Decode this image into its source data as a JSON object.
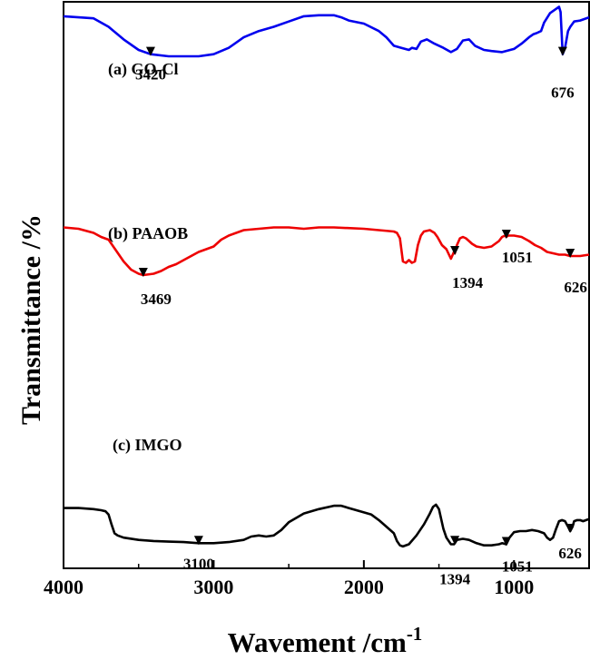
{
  "chart_data": {
    "type": "line",
    "title": "",
    "xlabel": "Wavement /cm",
    "xlabel_superscript": "-1",
    "ylabel": "Transmittance /%",
    "xlim": [
      4000,
      500
    ],
    "x_reversed": true,
    "xticks": [
      4000,
      3000,
      2000,
      1000
    ],
    "xtick_labels": [
      "4000",
      "3000",
      "2000",
      "1000"
    ],
    "yticks_shown": false,
    "grid": false,
    "legend": "none",
    "series": [
      {
        "name": "(a) GO-Cl",
        "color": "#0000ee",
        "points": [
          [
            4000,
            0.94
          ],
          [
            3800,
            0.93
          ],
          [
            3700,
            0.89
          ],
          [
            3600,
            0.83
          ],
          [
            3500,
            0.78
          ],
          [
            3420,
            0.76
          ],
          [
            3300,
            0.75
          ],
          [
            3100,
            0.75
          ],
          [
            3000,
            0.76
          ],
          [
            2900,
            0.79
          ],
          [
            2800,
            0.84
          ],
          [
            2700,
            0.87
          ],
          [
            2600,
            0.89
          ],
          [
            2500,
            0.915
          ],
          [
            2400,
            0.94
          ],
          [
            2300,
            0.945
          ],
          [
            2200,
            0.945
          ],
          [
            2150,
            0.935
          ],
          [
            2100,
            0.92
          ],
          [
            2000,
            0.905
          ],
          [
            1900,
            0.87
          ],
          [
            1850,
            0.84
          ],
          [
            1800,
            0.8
          ],
          [
            1750,
            0.79
          ],
          [
            1700,
            0.78
          ],
          [
            1680,
            0.79
          ],
          [
            1650,
            0.785
          ],
          [
            1620,
            0.82
          ],
          [
            1580,
            0.83
          ],
          [
            1530,
            0.81
          ],
          [
            1470,
            0.79
          ],
          [
            1420,
            0.77
          ],
          [
            1380,
            0.785
          ],
          [
            1340,
            0.825
          ],
          [
            1300,
            0.83
          ],
          [
            1260,
            0.8
          ],
          [
            1200,
            0.78
          ],
          [
            1150,
            0.775
          ],
          [
            1080,
            0.77
          ],
          [
            1000,
            0.785
          ],
          [
            950,
            0.81
          ],
          [
            900,
            0.84
          ],
          [
            870,
            0.855
          ],
          [
            850,
            0.86
          ],
          [
            820,
            0.87
          ],
          [
            800,
            0.91
          ],
          [
            760,
            0.955
          ],
          [
            720,
            0.975
          ],
          [
            700,
            0.985
          ],
          [
            690,
            0.96
          ],
          [
            676,
            0.76
          ],
          [
            660,
            0.79
          ],
          [
            640,
            0.87
          ],
          [
            625,
            0.89
          ],
          [
            600,
            0.915
          ],
          [
            560,
            0.92
          ],
          [
            500,
            0.935
          ]
        ]
      },
      {
        "name": "(b) PAAOB",
        "color": "#ee0000",
        "points": [
          [
            4000,
            0.685
          ],
          [
            3900,
            0.68
          ],
          [
            3800,
            0.665
          ],
          [
            3750,
            0.65
          ],
          [
            3700,
            0.64
          ],
          [
            3650,
            0.6
          ],
          [
            3600,
            0.56
          ],
          [
            3550,
            0.53
          ],
          [
            3500,
            0.515
          ],
          [
            3469,
            0.51
          ],
          [
            3400,
            0.515
          ],
          [
            3350,
            0.525
          ],
          [
            3300,
            0.54
          ],
          [
            3250,
            0.55
          ],
          [
            3200,
            0.565
          ],
          [
            3150,
            0.58
          ],
          [
            3100,
            0.595
          ],
          [
            3050,
            0.605
          ],
          [
            3000,
            0.615
          ],
          [
            2980,
            0.625
          ],
          [
            2950,
            0.64
          ],
          [
            2900,
            0.655
          ],
          [
            2850,
            0.665
          ],
          [
            2800,
            0.675
          ],
          [
            2700,
            0.68
          ],
          [
            2600,
            0.685
          ],
          [
            2500,
            0.685
          ],
          [
            2400,
            0.68
          ],
          [
            2300,
            0.685
          ],
          [
            2200,
            0.685
          ],
          [
            2000,
            0.68
          ],
          [
            1900,
            0.675
          ],
          [
            1800,
            0.67
          ],
          [
            1780,
            0.665
          ],
          [
            1760,
            0.645
          ],
          [
            1740,
            0.56
          ],
          [
            1720,
            0.555
          ],
          [
            1700,
            0.565
          ],
          [
            1680,
            0.555
          ],
          [
            1660,
            0.56
          ],
          [
            1640,
            0.62
          ],
          [
            1620,
            0.655
          ],
          [
            1600,
            0.67
          ],
          [
            1560,
            0.675
          ],
          [
            1530,
            0.665
          ],
          [
            1510,
            0.65
          ],
          [
            1500,
            0.64
          ],
          [
            1480,
            0.62
          ],
          [
            1450,
            0.605
          ],
          [
            1420,
            0.57
          ],
          [
            1400,
            0.595
          ],
          [
            1394,
            0.59
          ],
          [
            1380,
            0.62
          ],
          [
            1360,
            0.645
          ],
          [
            1340,
            0.65
          ],
          [
            1320,
            0.645
          ],
          [
            1300,
            0.635
          ],
          [
            1280,
            0.625
          ],
          [
            1250,
            0.615
          ],
          [
            1200,
            0.61
          ],
          [
            1150,
            0.615
          ],
          [
            1100,
            0.635
          ],
          [
            1080,
            0.65
          ],
          [
            1060,
            0.655
          ],
          [
            1051,
            0.65
          ],
          [
            1040,
            0.655
          ],
          [
            1000,
            0.655
          ],
          [
            950,
            0.65
          ],
          [
            900,
            0.635
          ],
          [
            860,
            0.62
          ],
          [
            820,
            0.61
          ],
          [
            780,
            0.595
          ],
          [
            740,
            0.59
          ],
          [
            700,
            0.585
          ],
          [
            660,
            0.585
          ],
          [
            626,
            0.58
          ],
          [
            600,
            0.58
          ],
          [
            560,
            0.58
          ],
          [
            500,
            0.585
          ]
        ]
      },
      {
        "name": "(c) IMGO",
        "color": "#000000",
        "points": [
          [
            4000,
            0.415
          ],
          [
            3900,
            0.415
          ],
          [
            3800,
            0.41
          ],
          [
            3750,
            0.405
          ],
          [
            3720,
            0.4
          ],
          [
            3700,
            0.385
          ],
          [
            3680,
            0.34
          ],
          [
            3660,
            0.3
          ],
          [
            3640,
            0.29
          ],
          [
            3600,
            0.28
          ],
          [
            3500,
            0.27
          ],
          [
            3400,
            0.265
          ],
          [
            3300,
            0.262
          ],
          [
            3200,
            0.26
          ],
          [
            3100,
            0.255
          ],
          [
            3000,
            0.255
          ],
          [
            2900,
            0.26
          ],
          [
            2800,
            0.27
          ],
          [
            2750,
            0.285
          ],
          [
            2700,
            0.29
          ],
          [
            2650,
            0.285
          ],
          [
            2600,
            0.29
          ],
          [
            2550,
            0.315
          ],
          [
            2500,
            0.35
          ],
          [
            2400,
            0.39
          ],
          [
            2300,
            0.41
          ],
          [
            2200,
            0.425
          ],
          [
            2150,
            0.425
          ],
          [
            2100,
            0.415
          ],
          [
            2000,
            0.395
          ],
          [
            1950,
            0.385
          ],
          [
            1900,
            0.36
          ],
          [
            1850,
            0.33
          ],
          [
            1800,
            0.3
          ],
          [
            1780,
            0.265
          ],
          [
            1760,
            0.245
          ],
          [
            1740,
            0.24
          ],
          [
            1700,
            0.25
          ],
          [
            1650,
            0.29
          ],
          [
            1600,
            0.34
          ],
          [
            1560,
            0.39
          ],
          [
            1540,
            0.42
          ],
          [
            1520,
            0.43
          ],
          [
            1500,
            0.41
          ],
          [
            1470,
            0.32
          ],
          [
            1450,
            0.28
          ],
          [
            1420,
            0.25
          ],
          [
            1400,
            0.25
          ],
          [
            1394,
            0.255
          ],
          [
            1380,
            0.27
          ],
          [
            1340,
            0.275
          ],
          [
            1300,
            0.27
          ],
          [
            1250,
            0.255
          ],
          [
            1200,
            0.245
          ],
          [
            1150,
            0.245
          ],
          [
            1100,
            0.25
          ],
          [
            1080,
            0.255
          ],
          [
            1051,
            0.25
          ],
          [
            1030,
            0.28
          ],
          [
            1000,
            0.305
          ],
          [
            960,
            0.31
          ],
          [
            920,
            0.31
          ],
          [
            880,
            0.315
          ],
          [
            840,
            0.31
          ],
          [
            800,
            0.3
          ],
          [
            780,
            0.28
          ],
          [
            760,
            0.27
          ],
          [
            740,
            0.28
          ],
          [
            720,
            0.32
          ],
          [
            700,
            0.355
          ],
          [
            680,
            0.36
          ],
          [
            660,
            0.355
          ],
          [
            640,
            0.33
          ],
          [
            626,
            0.31
          ],
          [
            610,
            0.33
          ],
          [
            600,
            0.355
          ],
          [
            580,
            0.36
          ],
          [
            560,
            0.36
          ],
          [
            540,
            0.355
          ],
          [
            520,
            0.36
          ],
          [
            500,
            0.365
          ]
        ]
      }
    ],
    "annotations": [
      {
        "text": "3420",
        "series": 0,
        "x": 3420
      },
      {
        "text": "676",
        "series": 0,
        "x": 676
      },
      {
        "text": "3469",
        "series": 1,
        "x": 3469
      },
      {
        "text": "1394",
        "series": 1,
        "x": 1394
      },
      {
        "text": "1051",
        "series": 1,
        "x": 1051
      },
      {
        "text": "626",
        "series": 1,
        "x": 626
      },
      {
        "text": "3100",
        "series": 2,
        "x": 3100
      },
      {
        "text": "1394",
        "series": 2,
        "x": 1394
      },
      {
        "text": "1051",
        "series": 2,
        "x": 1051
      },
      {
        "text": "626",
        "series": 2,
        "x": 626
      }
    ]
  }
}
